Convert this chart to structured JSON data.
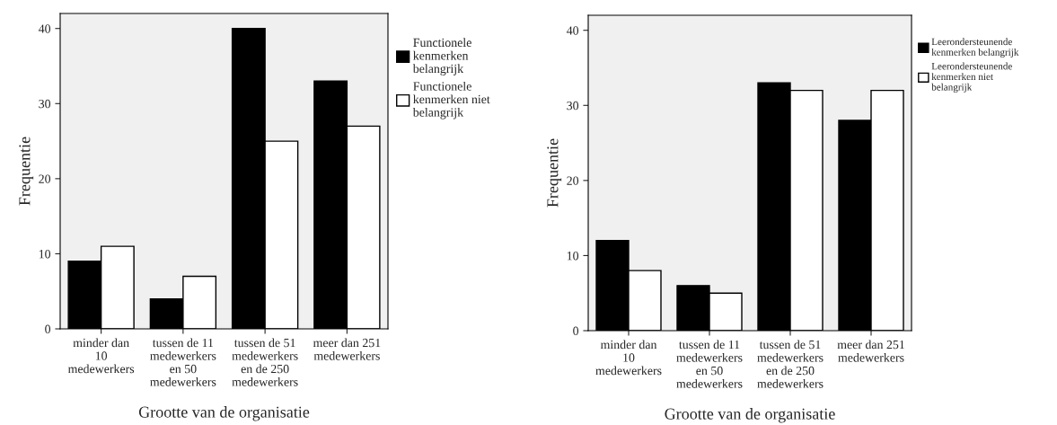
{
  "chart_data": [
    {
      "type": "bar",
      "xlabel": "Grootte van de organisatie",
      "ylabel": "Frequentie",
      "categories": [
        "minder dan\n10\nmedewerkers",
        "tussen de 11\nmedewerkers\nen 50\nmedewerkers",
        "tussen de 51\nmedewerkers\nen de 250\nmedewerkers",
        "meer dan 251\nmedewerkers"
      ],
      "series": [
        {
          "name": "Functionele\nkenmerken\nbelangrijk",
          "color": "#000000",
          "values": [
            9,
            4,
            40,
            33
          ]
        },
        {
          "name": "Functionele\nkenmerken niet\nbelangrijk",
          "color": "#ffffff",
          "values": [
            11,
            7,
            25,
            27
          ]
        }
      ],
      "ylim": [
        0,
        42
      ],
      "yticks": [
        0,
        10,
        20,
        30,
        40
      ],
      "grid": false,
      "legend": "right"
    },
    {
      "type": "bar",
      "xlabel": "Grootte van de organisatie",
      "ylabel": "Frequentie",
      "categories": [
        "minder dan\n10\nmedewerkers",
        "tussen de 11\nmedewerkers\nen 50\nmedewerkers",
        "tussen de 51\nmedewerkers\nen de 250\nmedewerkers",
        "meer dan 251\nmedewerkers"
      ],
      "series": [
        {
          "name": "Leerondersteunende\nkenmerken belangrijk",
          "color": "#000000",
          "values": [
            12,
            6,
            33,
            28
          ]
        },
        {
          "name": "Leerondersteunende\nkenmerken niet\nbelangrijk",
          "color": "#ffffff",
          "values": [
            8,
            5,
            32,
            32
          ]
        }
      ],
      "ylim": [
        0,
        42
      ],
      "yticks": [
        0,
        10,
        20,
        30,
        40
      ],
      "grid": false,
      "legend": "right"
    }
  ]
}
